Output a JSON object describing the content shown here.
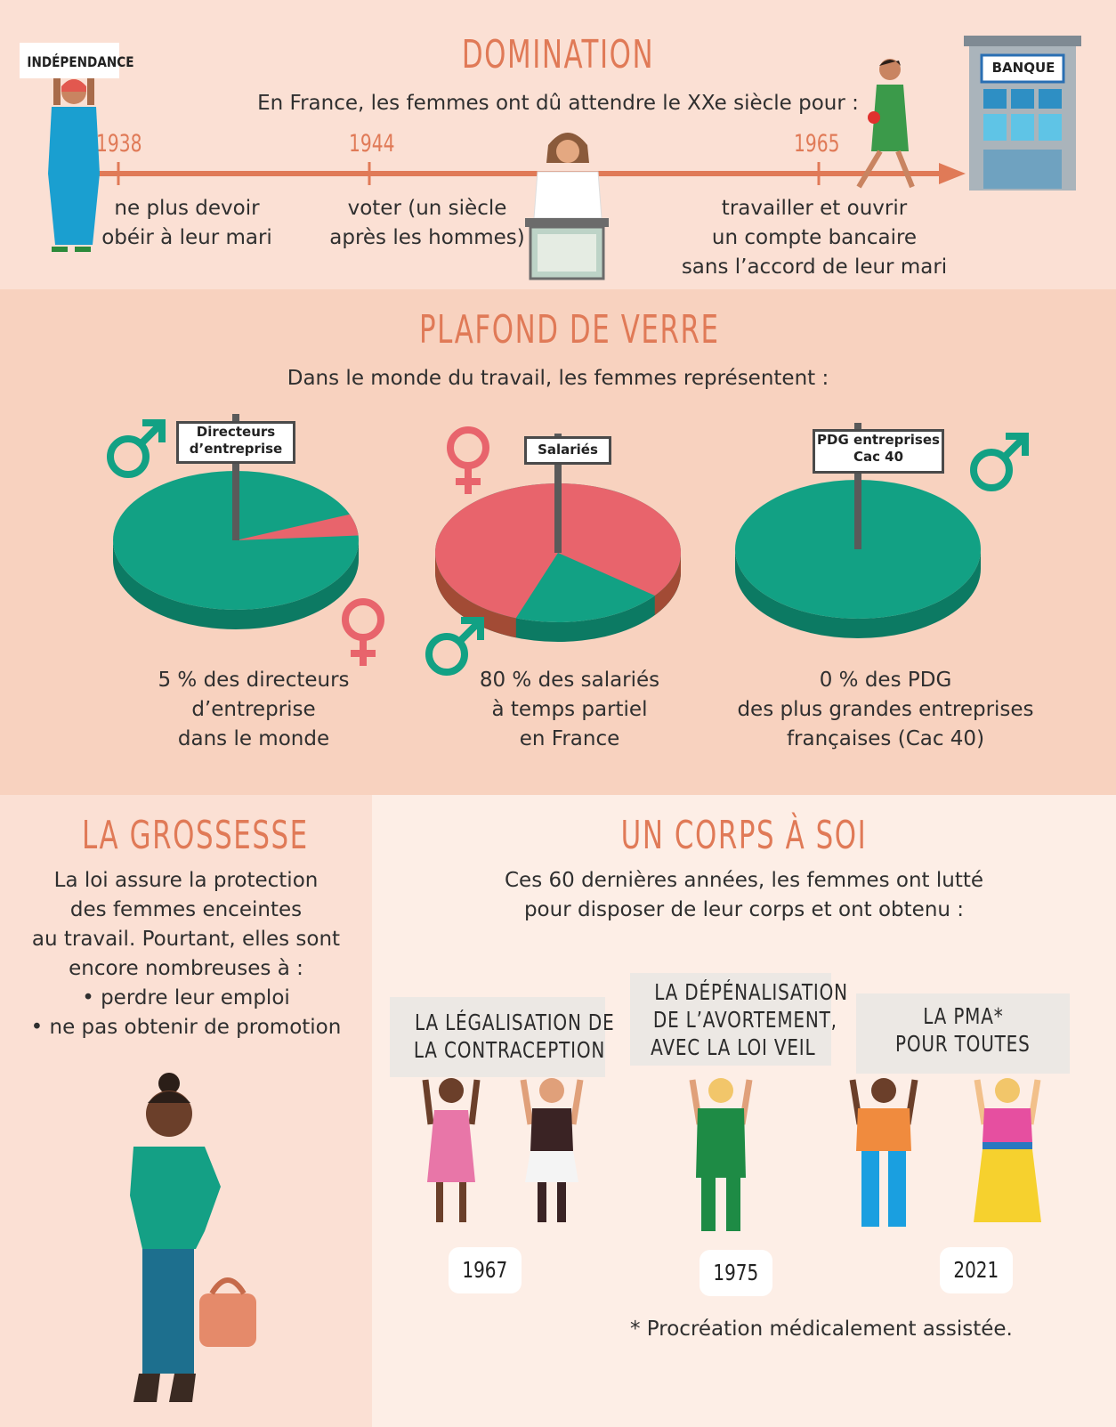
{
  "domination": {
    "title": "DOMINATION",
    "intro": "En France, les femmes ont dû attendre le XXe siècle pour :",
    "sign_independance": "INDÉPENDANCE",
    "bank_sign": "BANQUE",
    "events": [
      {
        "year": "1938",
        "line1": "ne plus devoir",
        "line2": "obéir à leur mari",
        "line3": ""
      },
      {
        "year": "1944",
        "line1": "voter (un siècle",
        "line2": "après les hommes)",
        "line3": ""
      },
      {
        "year": "1965",
        "line1": "travailler et ouvrir",
        "line2": "un compte bancaire",
        "line3": "sans l’accord de leur mari"
      }
    ]
  },
  "plafond": {
    "title": "PLAFOND DE VERRE",
    "intro": "Dans le monde du travail, les femmes représentent :",
    "charts": [
      {
        "sign_line1": "Directeurs",
        "sign_line2": "d’entreprise",
        "caption1": "5 % des directeurs",
        "caption2": "d’entreprise",
        "caption3": "dans le monde"
      },
      {
        "sign_line1": "Salariés",
        "sign_line2": "",
        "caption1": "80 % des salariés",
        "caption2": "à temps partiel",
        "caption3": "en France"
      },
      {
        "sign_line1": "PDG entreprises",
        "sign_line2": "Cac 40",
        "caption1": "0 % des PDG",
        "caption2": "des plus grandes entreprises",
        "caption3": "françaises (Cac 40)"
      }
    ]
  },
  "chart_data": {
    "type": "pie",
    "charts": [
      {
        "category": "Directeurs d’entreprise",
        "slices": [
          {
            "label": "femmes",
            "value": 5,
            "color": "#e8646c"
          },
          {
            "label": "hommes",
            "value": 95,
            "color": "#12a184"
          }
        ]
      },
      {
        "category": "Salariés",
        "slices": [
          {
            "label": "femmes",
            "value": 80,
            "color": "#e8646c"
          },
          {
            "label": "hommes",
            "value": 20,
            "color": "#12a184"
          }
        ]
      },
      {
        "category": "PDG entreprises Cac 40",
        "slices": [
          {
            "label": "femmes",
            "value": 0,
            "color": "#e8646c"
          },
          {
            "label": "hommes",
            "value": 100,
            "color": "#12a184"
          }
        ]
      }
    ]
  },
  "grossesse": {
    "title": "LA GROSSESSE",
    "lines": [
      "La loi assure la protection",
      "des femmes enceintes",
      "au travail. Pourtant, elles sont",
      "encore nombreuses à :",
      "• perdre leur emploi",
      "• ne pas obtenir de promotion"
    ]
  },
  "corps": {
    "title": "UN CORPS À SOI",
    "intro1": "Ces 60 dernières années, les femmes ont lutté",
    "intro2": "pour disposer de leur corps et ont obtenu :",
    "boards": [
      {
        "line1": "LA LÉGALISATION DE",
        "line2": "LA CONTRACEPTION",
        "line3": "",
        "year": "1967"
      },
      {
        "line1": "LA DÉPÉNALISATION",
        "line2": "DE L’AVORTEMENT,",
        "line3": "AVEC LA LOI VEIL",
        "year": "1975"
      },
      {
        "line1": "LA PMA*",
        "line2": "POUR TOUTES",
        "line3": "",
        "year": "2021"
      }
    ],
    "footnote": "* Procréation médicalement assistée."
  },
  "colors": {
    "accent": "#e07a57",
    "female": "#e8646c",
    "male": "#12a184",
    "female_dark": "#a24b35",
    "male_dark": "#0c7a63"
  }
}
